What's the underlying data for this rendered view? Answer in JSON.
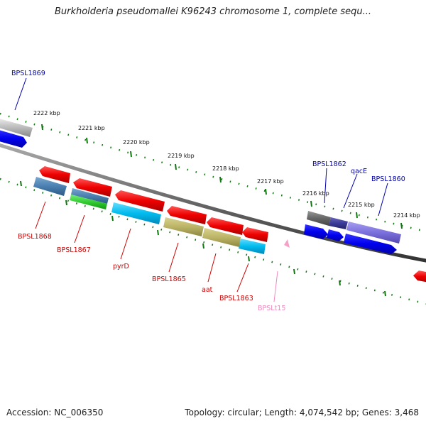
{
  "title": "Burkholderia pseudomallei K96243 chromosome 1, complete sequ...",
  "footer": {
    "accession": "Accession: NC_006350",
    "topology": "Topology: circular; Length: 4,074,542 bp; Genes: 3,468"
  },
  "ticks": [
    "2222 kbp",
    "2221 kbp",
    "2220 kbp",
    "2219 kbp",
    "2218 kbp",
    "2217 kbp",
    "2216 kbp",
    "2215 kbp",
    "2214 kbp"
  ],
  "genes_forward": [
    {
      "name": "BPSL1869",
      "color": "#0000aa"
    },
    {
      "name": "BPSL1862",
      "color": "#0000aa"
    },
    {
      "name": "qacE",
      "color": "#0000aa"
    },
    {
      "name": "BPSL1860",
      "color": "#0000aa"
    }
  ],
  "genes_reverse": [
    {
      "name": "BPSL1868",
      "color": "#cc0000"
    },
    {
      "name": "BPSL1867",
      "color": "#cc0000"
    },
    {
      "name": "pyrD",
      "color": "#cc0000"
    },
    {
      "name": "BPSL1865",
      "color": "#cc0000"
    },
    {
      "name": "aat",
      "color": "#cc0000"
    },
    {
      "name": "BPSL1863",
      "color": "#cc0000"
    },
    {
      "name": "BPSLt15",
      "color": "#ee88bb"
    }
  ]
}
